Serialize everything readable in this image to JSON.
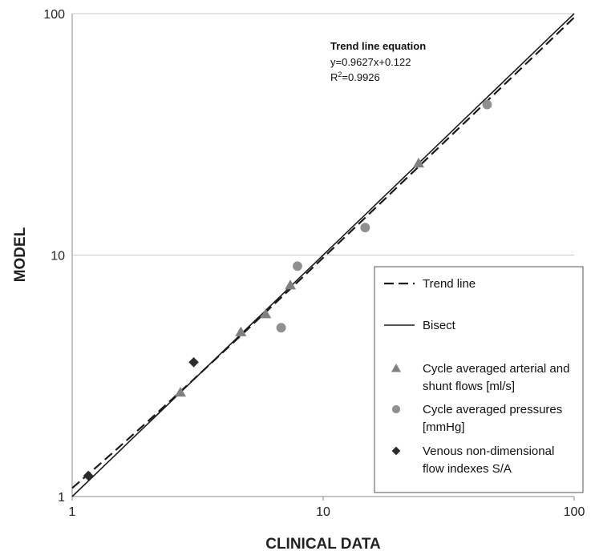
{
  "chart_data": {
    "type": "scatter",
    "xlabel": "CLINICAL DATA",
    "ylabel": "MODEL",
    "x_scale": "log",
    "y_scale": "log",
    "xlim": [
      1,
      100
    ],
    "ylim": [
      1,
      100
    ],
    "x_ticks": [
      "1",
      "10",
      "100"
    ],
    "y_ticks": [
      "1",
      "10",
      "100"
    ],
    "grid": "horizontal",
    "legend_position": "bottom-right",
    "annotation": {
      "title": "Trend line equation",
      "equation": "y=0.9627x+0.122",
      "r2_prefix": "R",
      "r2_sup": "2",
      "r2_value": "=0.9926"
    },
    "lines": [
      {
        "name": "Trend line",
        "style": "dashed",
        "color": "#1a1a1a",
        "slope": 0.9627,
        "intercept": 0.122
      },
      {
        "name": "Bisect",
        "style": "solid",
        "color": "#1a1a1a",
        "slope": 1,
        "intercept": 0
      }
    ],
    "series": [
      {
        "name": "Cycle averaged arterial and shunt flows [ml/s]",
        "legend_lines": [
          "Cycle averaged arterial and",
          "shunt flows [ml/s]"
        ],
        "marker": "triangle",
        "color": "#808080",
        "points": [
          [
            2.7,
            2.7
          ],
          [
            4.7,
            4.8
          ],
          [
            5.9,
            5.7
          ],
          [
            7.4,
            7.5
          ],
          [
            24,
            24
          ]
        ]
      },
      {
        "name": "Cycle averaged pressures [mmHg]",
        "legend_lines": [
          "Cycle averaged pressures",
          "[mmHg]"
        ],
        "marker": "circle",
        "color": "#909090",
        "points": [
          [
            6.8,
            5.0
          ],
          [
            7.9,
            9.0
          ],
          [
            14.7,
            13.0
          ],
          [
            45,
            42
          ]
        ]
      },
      {
        "name": "Venous non-dimensional flow indexes S/A",
        "legend_lines": [
          "Venous non-dimensional",
          "flow indexes S/A"
        ],
        "marker": "diamond",
        "color": "#2b2b2b",
        "points": [
          [
            1.16,
            1.22
          ],
          [
            3.05,
            3.6
          ]
        ]
      }
    ]
  }
}
